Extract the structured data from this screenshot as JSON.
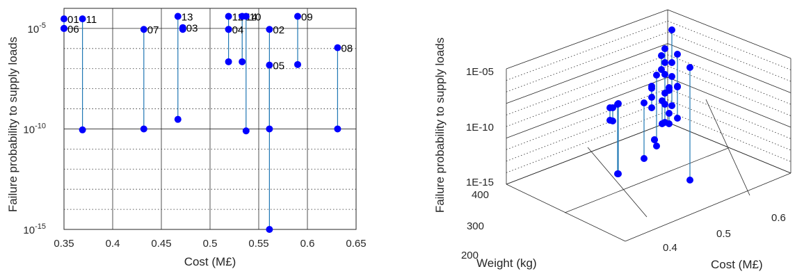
{
  "colors": {
    "marker": "#0000ff",
    "stem": "#1f77b4",
    "grid": "#262626",
    "axis": "#262626"
  },
  "chart_data": [
    {
      "type": "scatter",
      "variant": "2d-dropline",
      "title": "",
      "xlabel": "Cost (M£)",
      "ylabel": "Failure probability to supply loads",
      "xlim": [
        0.35,
        0.65
      ],
      "ylim": [
        1e-15,
        0.0001
      ],
      "yscale": "log",
      "xticks": [
        "0.35",
        "0.4",
        "0.45",
        "0.5",
        "0.55",
        "0.6",
        "0.65"
      ],
      "yticks": [
        {
          "label": "10",
          "exp": "-5",
          "value": 1e-05
        },
        {
          "label": "10",
          "exp": "-10",
          "value": 1e-10
        },
        {
          "label": "10",
          "exp": "-15",
          "value": 1e-15
        }
      ],
      "grid": "on (major solid, minor dotted)",
      "points": [
        {
          "id": "01",
          "x": 0.35,
          "y_top": 3e-05,
          "y_bottom": 1e-05
        },
        {
          "id": "06",
          "x": 0.35,
          "y_top": 1e-05,
          "y_bottom": 1e-05
        },
        {
          "id": "11",
          "x": 0.369,
          "y_top": 3e-05,
          "y_bottom": 9e-11
        },
        {
          "id": "07",
          "x": 0.432,
          "y_top": 9e-06,
          "y_bottom": 1e-10
        },
        {
          "id": "13",
          "x": 0.467,
          "y_top": 4e-05,
          "y_bottom": 3e-10
        },
        {
          "id": "03",
          "x": 0.472,
          "y_top": 1.1e-05,
          "y_bottom": 9e-06
        },
        {
          "id": "04",
          "x": 0.519,
          "y_top": 9e-06,
          "y_bottom": 2.2e-07
        },
        {
          "id": "12",
          "x": 0.519,
          "y_top": 4e-05,
          "y_bottom": 9e-06
        },
        {
          "id": "14",
          "x": 0.533,
          "y_top": 4e-05,
          "y_bottom": 2.2e-07
        },
        {
          "id": "10",
          "x": 0.537,
          "y_top": 4e-05,
          "y_bottom": 8e-11
        },
        {
          "id": "02",
          "x": 0.561,
          "y_top": 9e-06,
          "y_bottom": 1e-15
        },
        {
          "id": "05",
          "x": 0.561,
          "y_top": 1.5e-07,
          "y_bottom": 1e-10
        },
        {
          "id": "09",
          "x": 0.59,
          "y_top": 4e-05,
          "y_bottom": 1.6e-07
        },
        {
          "id": "08",
          "x": 0.631,
          "y_top": 1.1e-06,
          "y_bottom": 1e-10
        }
      ]
    },
    {
      "type": "scatter",
      "variant": "3d-dropline",
      "title": "",
      "xlabel": "Cost (M£)",
      "ylabel": "Weight (kg)",
      "zlabel": "Failure probability to supply loads",
      "xticks": [
        "0.4",
        "0.5",
        "0.6"
      ],
      "yticks": [
        "200",
        "300",
        "400"
      ],
      "zticks": [
        "1E-05",
        "1E-10",
        "1E-15"
      ],
      "zscale": "log",
      "grid": "on (dotted)",
      "view": "oblique perspective",
      "points_screen_note": "markers estimated from projected view"
    }
  ]
}
